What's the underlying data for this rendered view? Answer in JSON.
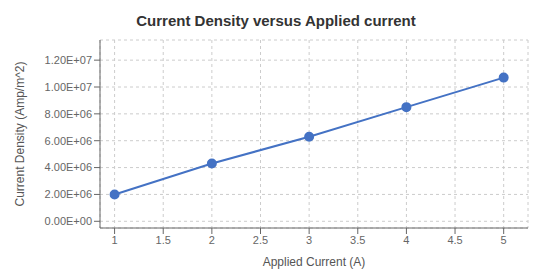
{
  "chart_data": {
    "type": "line",
    "title": "Current Density versus Applied current",
    "x_label": "Applied Current (A)",
    "y_label": "Current Density (Amp/m^2)",
    "x": [
      1,
      2,
      3,
      4,
      5
    ],
    "series": [
      {
        "name": "Current Density",
        "color": "#4472C4",
        "marker": "circle",
        "values": [
          2000000.0,
          4300000.0,
          6300000.0,
          8500000.0,
          10700000.0
        ]
      }
    ],
    "xlim": [
      0.85,
      5.25
    ],
    "ylim": [
      -500000.0,
      13500000.0
    ],
    "xticks": [
      1,
      1.5,
      2,
      2.5,
      3,
      3.5,
      4,
      4.5,
      5
    ],
    "yticks": [
      {
        "value": 0,
        "label": "0.00E+00"
      },
      {
        "value": 2000000.0,
        "label": "2.00E+06"
      },
      {
        "value": 4000000.0,
        "label": "4.00E+06"
      },
      {
        "value": 6000000.0,
        "label": "6.00E+06"
      },
      {
        "value": 8000000.0,
        "label": "8.00E+06"
      },
      {
        "value": 10000000.0,
        "label": "1.00E+07"
      },
      {
        "value": 12000000.0,
        "label": "1.20E+07"
      }
    ],
    "grid": true
  }
}
